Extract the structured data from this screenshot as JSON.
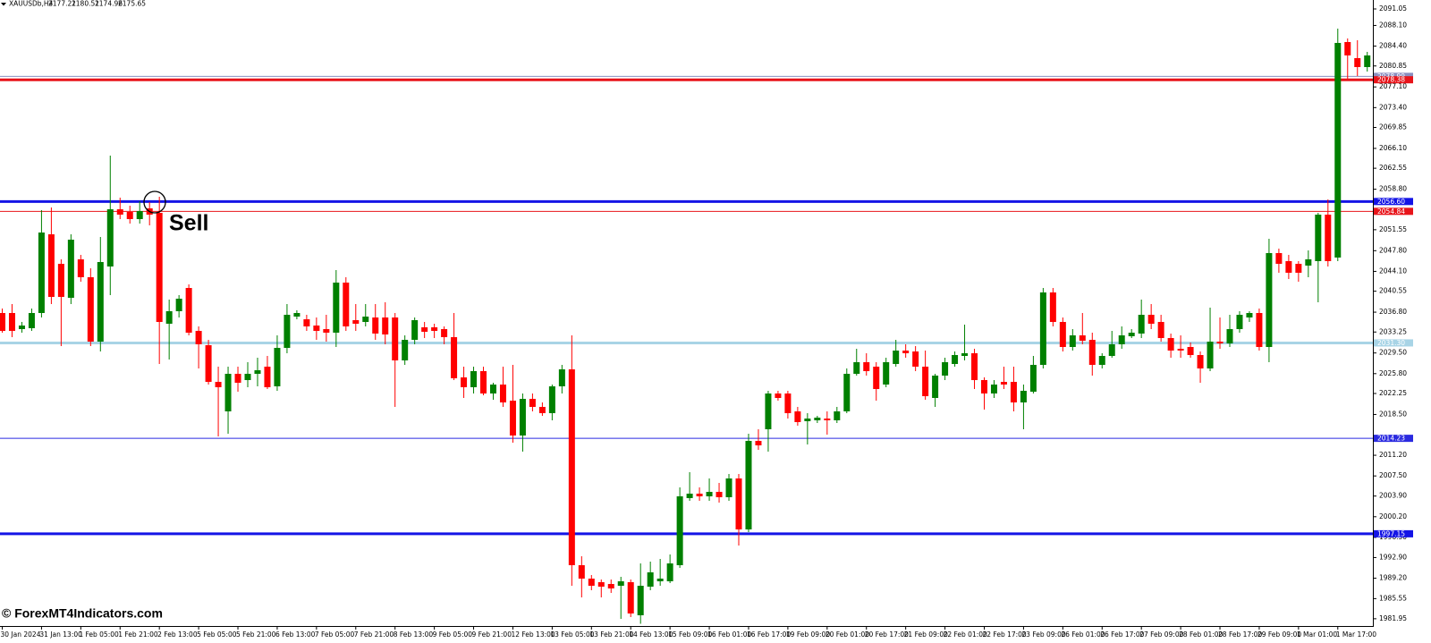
{
  "chart_data": {
    "type": "candlestick",
    "symbol": "XAUUSDb,H4",
    "header_values": [
      2177.21,
      2180.51,
      2174.96,
      2175.65
    ],
    "watermark": "© ForexMT4Indicators.com",
    "annotation": "Sell",
    "up_color": "#008000",
    "down_color": "#ff0000",
    "ylim": [
      1980.65,
      2092.65
    ],
    "yticks": [
      2091.05,
      {
        "value": 2088.1,
        "label": "2088.10"
      },
      {
        "value": 2084.4,
        "label": "2084.40"
      },
      2080.85,
      {
        "value": 2077.1,
        "label": "2077.10"
      },
      {
        "value": 2073.4,
        "label": "2073.40"
      },
      2069.85,
      {
        "value": 2066.1,
        "label": "2066.10"
      },
      2062.55,
      {
        "value": 2058.8,
        "label": "2058.80"
      },
      2051.55,
      {
        "value": 2047.8,
        "label": "2047.80"
      },
      {
        "value": 2044.1,
        "label": "2044.10"
      },
      2040.55,
      {
        "value": 2036.8,
        "label": "2036.80"
      },
      2033.25,
      {
        "value": 2029.5,
        "label": "2029.50"
      },
      {
        "value": 2025.8,
        "label": "2025.80"
      },
      2022.25,
      {
        "value": 2018.5,
        "label": "2018.50"
      },
      {
        "value": 2011.2,
        "label": "2011.20"
      },
      {
        "value": 2007.5,
        "label": "2007.50"
      },
      {
        "value": 2003.9,
        "label": "2003.90"
      },
      {
        "value": 2000.2,
        "label": "2000.20"
      },
      {
        "value": 1996.5,
        "label": "1996.50"
      },
      {
        "value": 1992.9,
        "label": "1992.90"
      },
      {
        "value": 1989.2,
        "label": "1989.20"
      },
      1985.55,
      1981.95
    ],
    "hlines": [
      {
        "value": 2078.99,
        "color": "#8a8fc0",
        "width": 1
      },
      {
        "value": 2078.38,
        "label": "2078.38",
        "color": "#e8141a",
        "width": 3
      },
      {
        "value": 2056.6,
        "label": "2056.60",
        "color": "#1414e6",
        "width": 3
      },
      {
        "value": 2054.84,
        "label": "2054.84",
        "color": "#e8141a",
        "width": 1
      },
      {
        "value": 2031.3,
        "label": "2031.30",
        "color": "#a8d4e6",
        "width": 3
      },
      {
        "value": 2014.23,
        "color": "#2a2ae0",
        "width": 1
      },
      {
        "value": 1997.15,
        "color": "#1414e6",
        "width": 3
      }
    ],
    "categories": [
      "30 Jan 2024",
      null,
      null,
      null,
      "31 Jan 13:00",
      null,
      null,
      null,
      "1 Feb 05:00",
      null,
      null,
      null,
      "1 Feb 21:00",
      null,
      null,
      null,
      "2 Feb 13:00",
      null,
      null,
      null,
      "5 Feb 05:00",
      null,
      null,
      null,
      "5 Feb 21:00",
      null,
      null,
      null,
      "6 Feb 13:00",
      null,
      null,
      null,
      "7 Feb 05:00",
      null,
      null,
      null,
      "7 Feb 21:00",
      null,
      null,
      null,
      "8 Feb 13:00",
      null,
      null,
      null,
      "9 Feb 05:00",
      null,
      null,
      null,
      "9 Feb 21:00",
      null,
      null,
      null,
      "12 Feb 13:00",
      null,
      null,
      null,
      "13 Feb 05:00",
      null,
      null,
      null,
      "13 Feb 21:00",
      null,
      null,
      null,
      "14 Feb 13:00",
      null,
      null,
      null,
      "15 Feb 09:00",
      null,
      null,
      null,
      "16 Feb 01:00",
      null,
      null,
      null,
      "16 Feb 17:00",
      null,
      null,
      null,
      "19 Feb 09:00",
      null,
      null,
      null,
      "20 Feb 01:00",
      null,
      null,
      null,
      "20 Feb 17:00",
      null,
      null,
      null,
      "21 Feb 09:00",
      null,
      null,
      null,
      "22 Feb 01:00",
      null,
      null,
      null,
      "22 Feb 17:00",
      null,
      null,
      null,
      "23 Feb 09:00",
      null,
      null,
      null,
      "26 Feb 01:00",
      null,
      null,
      null,
      "26 Feb 17:00",
      null,
      null,
      null,
      "27 Feb 09:00",
      null,
      null,
      null,
      "28 Feb 01:00",
      null,
      null,
      null,
      "28 Feb 17:00",
      null,
      null,
      null,
      "29 Feb 09:00",
      null,
      null,
      null,
      "1 Mar 01:00",
      null,
      null,
      null,
      "1 Mar 17:00",
      null,
      null,
      null
    ],
    "open": [
      2036.65,
      2036.65,
      2033.77,
      2033.93,
      2036.65,
      2050.73,
      2045.45,
      2039.37,
      2046.25,
      2043.05,
      2031.53,
      2044.97,
      2055.21,
      2054.73,
      2053.45,
      2055.37,
      2054.57,
      2034.73,
      2036.97,
      2041.13,
      2033.45,
      2030.89,
      2024.33,
      2019.05,
      2025.77,
      2024.65,
      2025.77,
      2027.05,
      2023.53,
      2030.41,
      2036.01,
      2035.53,
      2034.41,
      2033.77,
      2033.13,
      2042.09,
      2035.37,
      2035.05,
      2035.85,
      2035.85,
      2035.85,
      2028.17,
      2031.85,
      2034.09,
      2034.09,
      2033.77,
      2032.33,
      2025.13,
      2023.37,
      2026.25,
      2022.25,
      2023.85,
      2020.97,
      2014.73,
      2021.29,
      2019.85,
      2018.73,
      2023.53,
      2026.57,
      1991.53,
      1989.13,
      1988.49,
      1988.17,
      1987.85,
      1988.49,
      1982.57,
      1987.69,
      1988.65,
      1988.65,
      1991.53,
      2003.53,
      2004.33,
      2003.85,
      2004.65,
      2003.69,
      2007.05,
      1997.93,
      2013.77,
      2015.85,
      2022.25,
      2022.25,
      2019.05,
      2017.29,
      2017.45,
      2017.77,
      2017.45,
      2019.05,
      2025.77,
      2027.85,
      2027.05,
      2023.85,
      2027.53,
      2029.93,
      2029.77,
      2027.05,
      2021.45,
      2025.45,
      2027.53,
      2028.97,
      2029.45,
      2024.65,
      2022.25,
      2024.33,
      2024.33,
      2020.65,
      2022.57,
      2027.37,
      2040.33,
      2035.05,
      2030.57,
      2032.65,
      2031.85,
      2027.37,
      2028.97,
      2031.05,
      2032.49,
      2032.97,
      2036.33,
      2035.05,
      2032.17,
      2030.25,
      2030.57,
      2029.13,
      2026.73,
      2031.53,
      2031.21,
      2033.77,
      2035.85,
      2036.65,
      2030.57,
      2047.37,
      2045.93,
      2045.45,
      2045.13,
      2045.93,
      2054.25,
      2046.57,
      2085.13,
      2082.25,
      2080.65
    ],
    "high": [
      2037.45,
      2038.25,
      2035.05,
      2037.45,
      2055.05,
      2055.53,
      2046.25,
      2050.73,
      2047.05,
      2044.65,
      2050.25,
      2064.81,
      2057.29,
      2055.85,
      2056.65,
      2056.49,
      2057.45,
      2039.05,
      2039.85,
      2041.77,
      2034.25,
      2031.85,
      2027.05,
      2027.05,
      2027.05,
      2027.85,
      2028.65,
      2028.97,
      2032.65,
      2038.25,
      2037.13,
      2036.33,
      2035.85,
      2036.33,
      2044.33,
      2043.05,
      2038.25,
      2038.25,
      2038.25,
      2038.57,
      2036.65,
      2032.65,
      2035.85,
      2035.05,
      2034.73,
      2034.25,
      2036.65,
      2027.05,
      2027.05,
      2027.05,
      2024.17,
      2027.05,
      2027.37,
      2022.25,
      2022.25,
      2020.65,
      2023.85,
      2027.37,
      2032.65,
      1993.13,
      1989.77,
      1988.97,
      1988.97,
      1989.45,
      1988.97,
      1991.85,
      1992.17,
      1992.65,
      1993.45,
      2005.45,
      2008.17,
      2005.45,
      2007.05,
      2006.25,
      2007.85,
      2007.85,
      2015.05,
      2015.85,
      2022.73,
      2022.73,
      2022.73,
      2019.85,
      2018.73,
      2018.25,
      2019.05,
      2019.85,
      2026.73,
      2030.25,
      2029.45,
      2027.85,
      2028.65,
      2031.85,
      2031.05,
      2030.73,
      2029.93,
      2025.77,
      2028.65,
      2029.77,
      2034.57,
      2030.25,
      2025.13,
      2024.65,
      2027.05,
      2027.05,
      2023.85,
      2028.97,
      2041.13,
      2041.13,
      2035.85,
      2033.77,
      2036.65,
      2033.13,
      2029.45,
      2033.45,
      2034.25,
      2033.77,
      2039.05,
      2038.25,
      2036.33,
      2032.97,
      2032.65,
      2031.37,
      2029.77,
      2037.61,
      2035.85,
      2036.33,
      2036.97,
      2036.97,
      2037.45,
      2049.93,
      2048.17,
      2047.05,
      2045.93,
      2047.85,
      2054.57,
      2056.97,
      2087.53,
      2085.77,
      2085.45,
      2083.37
    ],
    "low": [
      2033.13,
      2032.33,
      2033.13,
      2033.45,
      2035.85,
      2038.25,
      2030.73,
      2038.25,
      2042.25,
      2030.73,
      2029.77,
      2039.85,
      2053.45,
      2052.65,
      2052.65,
      2052.33,
      2027.53,
      2028.33,
      2035.85,
      2032.65,
      2026.73,
      2023.85,
      2014.57,
      2015.05,
      2022.57,
      2023.37,
      2023.53,
      2023.05,
      2022.73,
      2029.45,
      2035.53,
      2033.45,
      2031.85,
      2031.53,
      2030.57,
      2033.45,
      2033.45,
      2034.25,
      2031.85,
      2031.05,
      2019.85,
      2027.37,
      2031.05,
      2032.17,
      2032.17,
      2031.05,
      2024.65,
      2021.45,
      2022.25,
      2021.93,
      2021.13,
      2019.85,
      2013.45,
      2011.85,
      2019.05,
      2018.25,
      2017.45,
      2022.25,
      1987.85,
      1985.77,
      1987.05,
      1985.77,
      1986.57,
      1981.93,
      1982.25,
      1981.05,
      1987.05,
      1987.85,
      1988.33,
      1991.05,
      2003.05,
      2003.05,
      2003.05,
      2002.73,
      2003.05,
      1995.05,
      1997.45,
      2012.17,
      2011.85,
      2020.97,
      2017.77,
      2016.49,
      2013.13,
      2016.97,
      2014.89,
      2016.97,
      2018.73,
      2025.45,
      2025.45,
      2020.97,
      2023.37,
      2027.05,
      2028.65,
      2026.25,
      2021.13,
      2019.85,
      2024.65,
      2027.05,
      2028.17,
      2023.05,
      2019.37,
      2021.45,
      2023.05,
      2019.05,
      2015.85,
      2022.25,
      2026.73,
      2034.25,
      2029.77,
      2029.93,
      2031.05,
      2025.45,
      2026.73,
      2028.65,
      2030.25,
      2032.17,
      2032.17,
      2033.77,
      2031.53,
      2028.65,
      2028.65,
      2028.65,
      2024.17,
      2026.25,
      2030.25,
      2030.57,
      2033.13,
      2035.05,
      2029.93,
      2027.85,
      2043.85,
      2042.73,
      2042.25,
      2043.05,
      2038.57,
      2044.97,
      2045.93,
      2078.57,
      2079.05,
      2079.85
    ],
    "close": [
      2033.45,
      2033.45,
      2034.41,
      2036.65,
      2051.05,
      2039.53,
      2039.53,
      2049.77,
      2043.05,
      2031.53,
      2045.77,
      2055.21,
      2054.25,
      2053.45,
      2054.89,
      2054.25,
      2035.05,
      2036.97,
      2039.21,
      2033.13,
      2031.05,
      2024.33,
      2023.37,
      2025.77,
      2024.17,
      2025.77,
      2026.41,
      2023.37,
      2030.41,
      2036.33,
      2036.65,
      2034.25,
      2033.45,
      2033.13,
      2042.09,
      2034.25,
      2034.73,
      2036.01,
      2032.97,
      2032.81,
      2028.17,
      2031.85,
      2035.37,
      2033.29,
      2033.45,
      2032.33,
      2024.97,
      2023.37,
      2026.25,
      2022.25,
      2023.85,
      2020.65,
      2014.73,
      2021.29,
      2019.85,
      2018.73,
      2023.53,
      2026.57,
      1991.53,
      1989.13,
      1987.85,
      1987.69,
      1987.37,
      1988.65,
      1982.89,
      1987.85,
      1990.25,
      1989.13,
      1991.85,
      2003.85,
      2004.33,
      2003.85,
      2004.65,
      2003.69,
      2007.05,
      1997.93,
      2013.77,
      2012.97,
      2022.25,
      2021.45,
      2018.73,
      2017.13,
      2017.77,
      2017.93,
      2017.45,
      2019.05,
      2025.77,
      2027.85,
      2026.25,
      2023.05,
      2027.85,
      2029.93,
      2029.45,
      2027.05,
      2021.77,
      2025.45,
      2027.85,
      2029.13,
      2029.45,
      2024.65,
      2022.25,
      2023.85,
      2023.85,
      2020.65,
      2022.73,
      2027.37,
      2040.33,
      2035.05,
      2030.57,
      2032.65,
      2031.69,
      2027.37,
      2028.97,
      2031.05,
      2032.65,
      2033.13,
      2036.33,
      2034.73,
      2032.17,
      2029.93,
      2029.93,
      2029.13,
      2026.73,
      2031.53,
      2031.21,
      2033.77,
      2036.33,
      2036.65,
      2030.57,
      2047.37,
      2045.45,
      2043.85,
      2043.85,
      2046.25,
      2054.25,
      2045.93,
      2084.97,
      2082.73,
      2080.65,
      2082.73
    ]
  }
}
